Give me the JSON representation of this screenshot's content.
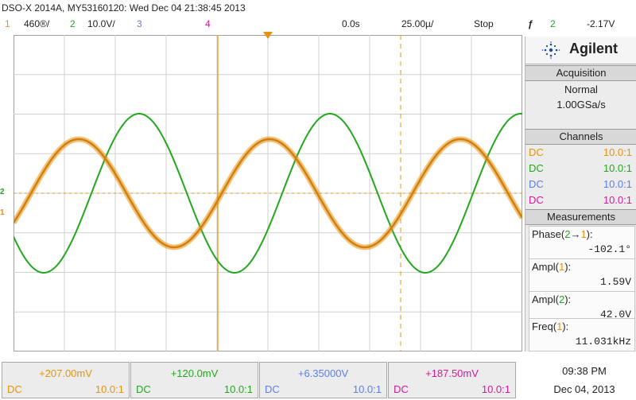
{
  "header": {
    "title": "DSO-X 2014A, MY53160120: Wed Dec 04 21:38:45 2013",
    "ch1_num": "1",
    "ch1_scale": "460®/",
    "ch2_num": "2",
    "ch2_scale": "10.0V/",
    "ch3_num": "3",
    "ch4_num": "4",
    "time_offset": "0.0s",
    "time_scale": "25.00µ/",
    "run_state": "Stop",
    "trigger_symbol": "ƒ",
    "trigger_channel": "2",
    "trigger_level": "-2.17V"
  },
  "colors": {
    "ch1": "#e8920f",
    "ch2": "#22a81e",
    "ch3": "#5b7fe6",
    "ch4": "#d6189a",
    "grid": "#d0d0d0",
    "border": "#a0a0a0"
  },
  "panel": {
    "brand": "Agilent",
    "acquisition": {
      "heading": "Acquisition",
      "mode": "Normal",
      "rate": "1.00GSa/s"
    },
    "channels": {
      "heading": "Channels",
      "rows": [
        {
          "coupling": "DC",
          "ratio": "10.0:1"
        },
        {
          "coupling": "DC",
          "ratio": "10.0:1"
        },
        {
          "coupling": "DC",
          "ratio": "10.0:1"
        },
        {
          "coupling": "DC",
          "ratio": "10.0:1"
        }
      ]
    },
    "measurements": {
      "heading": "Measurements",
      "phase_label": "Phase(",
      "phase_src": "2",
      "phase_arrow": "→",
      "phase_dst": "1",
      "phase_close": "):",
      "phase_value": "-102.1°",
      "ampl1_label": "Ampl(",
      "ampl1_src": "1",
      "ampl1_close": "):",
      "ampl1_value": "1.59V",
      "ampl2_label": "Ampl(",
      "ampl2_src": "2",
      "ampl2_close": "):",
      "ampl2_value": "42.0V",
      "freq_label": "Freq(",
      "freq_src": "1",
      "freq_close": "):",
      "freq_value": "11.031kHz"
    }
  },
  "bottom": [
    {
      "offset": "+207.00mV",
      "coupling": "DC",
      "ratio": "10.0:1"
    },
    {
      "offset": "+120.0mV",
      "coupling": "DC",
      "ratio": "10.0:1"
    },
    {
      "offset": "+6.35000V",
      "coupling": "DC",
      "ratio": "10.0:1"
    },
    {
      "offset": "+187.50mV",
      "coupling": "DC",
      "ratio": "10.0:1"
    }
  ],
  "clock": {
    "time": "09:38 PM",
    "date": "Dec 04, 2013"
  },
  "markers": {
    "ch1": "1",
    "ch2": "2"
  }
}
